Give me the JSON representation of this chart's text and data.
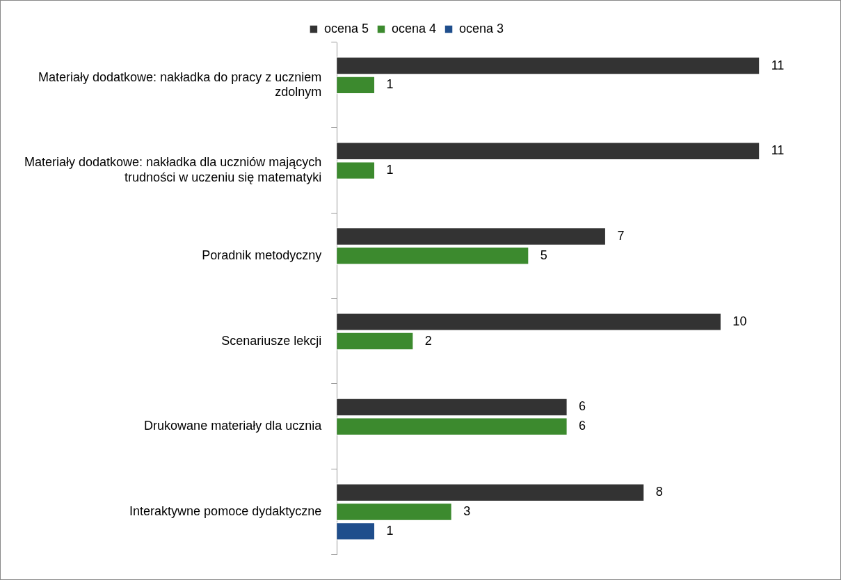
{
  "chart_data": {
    "type": "bar",
    "orientation": "horizontal",
    "categories": [
      "Materiały dodatkowe: nakładka do pracy z uczniem zdolnym",
      "Materiały dodatkowe: nakładka dla uczniów mających trudności w uczeniu się matematyki",
      "Poradnik metodyczny",
      "Scenariusze lekcji",
      "Drukowane materiały dla ucznia",
      "Interaktywne pomoce dydaktyczne"
    ],
    "series": [
      {
        "name": "ocena 5",
        "color": "#333333",
        "values": [
          11,
          11,
          7,
          10,
          6,
          8
        ]
      },
      {
        "name": "ocena 4",
        "color": "#3c8a2e",
        "values": [
          1,
          1,
          5,
          2,
          6,
          3
        ]
      },
      {
        "name": "ocena 3",
        "color": "#1f4e8c",
        "values": [
          null,
          null,
          null,
          null,
          null,
          1
        ]
      }
    ],
    "data_labels": true,
    "legend": "top",
    "grid": false
  }
}
